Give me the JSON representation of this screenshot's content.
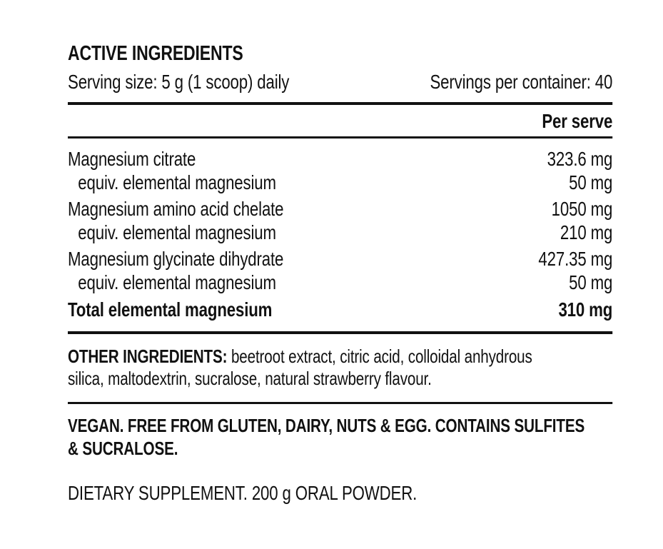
{
  "label": {
    "title": "ACTIVE INGREDIENTS",
    "serving_size": "Serving size: 5 g (1 scoop) daily",
    "servings_per_container": "Servings per container: 40",
    "column_header": "Per serve",
    "table": {
      "rows": [
        {
          "name": "Magnesium citrate",
          "value": "323.6 mg"
        },
        {
          "name": "equiv. elemental magnesium",
          "value": "50 mg"
        },
        {
          "name": "Magnesium amino acid chelate",
          "value": "1050 mg"
        },
        {
          "name": "equiv. elemental magnesium",
          "value": "210 mg"
        },
        {
          "name": "Magnesium glycinate dihydrate",
          "value": "427.35 mg"
        },
        {
          "name": "equiv. elemental magnesium",
          "value": "50 mg"
        },
        {
          "name": "Total elemental magnesium",
          "value": "310 mg"
        }
      ]
    },
    "other_ingredients_label": "OTHER INGREDIENTS:",
    "other_ingredients_text": "beetroot extract, citric acid, colloidal anhydrous\nsilica, maltodextrin, sucralose, natural strawberry flavour.",
    "allergen_statement": "VEGAN. FREE FROM GLUTEN, DAIRY, NUTS & EGG. CONTAINS SULFITES\n& SUCRALOSE.",
    "supplement_statement": "DIETARY SUPPLEMENT. 200 g ORAL POWDER.",
    "colors": {
      "background": "#ffffff",
      "text": "#111111",
      "rule": "#111111"
    }
  }
}
